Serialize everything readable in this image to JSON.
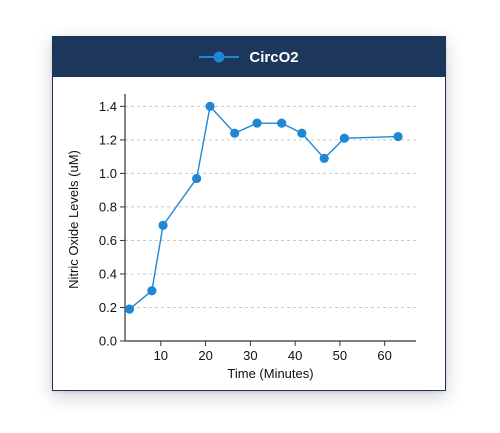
{
  "chart_data": {
    "type": "line",
    "title": "",
    "xlabel": "Time (Minutes)",
    "ylabel": "Nitric Oxide Levels (uM)",
    "xlim": [
      2,
      67
    ],
    "ylim": [
      0,
      1.45
    ],
    "xticks": [
      10,
      20,
      30,
      40,
      50,
      60
    ],
    "xtick_labels": [
      "10",
      "20",
      "30",
      "40",
      "50",
      "60"
    ],
    "yticks": [
      0.0,
      0.2,
      0.4,
      0.6,
      0.8,
      1.0,
      1.2,
      1.4
    ],
    "ytick_labels": [
      "0.0",
      "0.2",
      "0.4",
      "0.6",
      "0.8",
      "1.0",
      "1.2",
      "1.4"
    ],
    "grid": "horizontal-dashed",
    "legend_position": "top-center",
    "series": [
      {
        "name": "CircO2",
        "color": "#1e88d4",
        "x": [
          3,
          8,
          10.5,
          18,
          21,
          26.5,
          31.5,
          37,
          41.5,
          46.5,
          51,
          63
        ],
        "y": [
          0.19,
          0.3,
          0.69,
          0.97,
          1.4,
          1.24,
          1.3,
          1.3,
          1.24,
          1.09,
          1.21,
          1.22
        ]
      }
    ]
  }
}
